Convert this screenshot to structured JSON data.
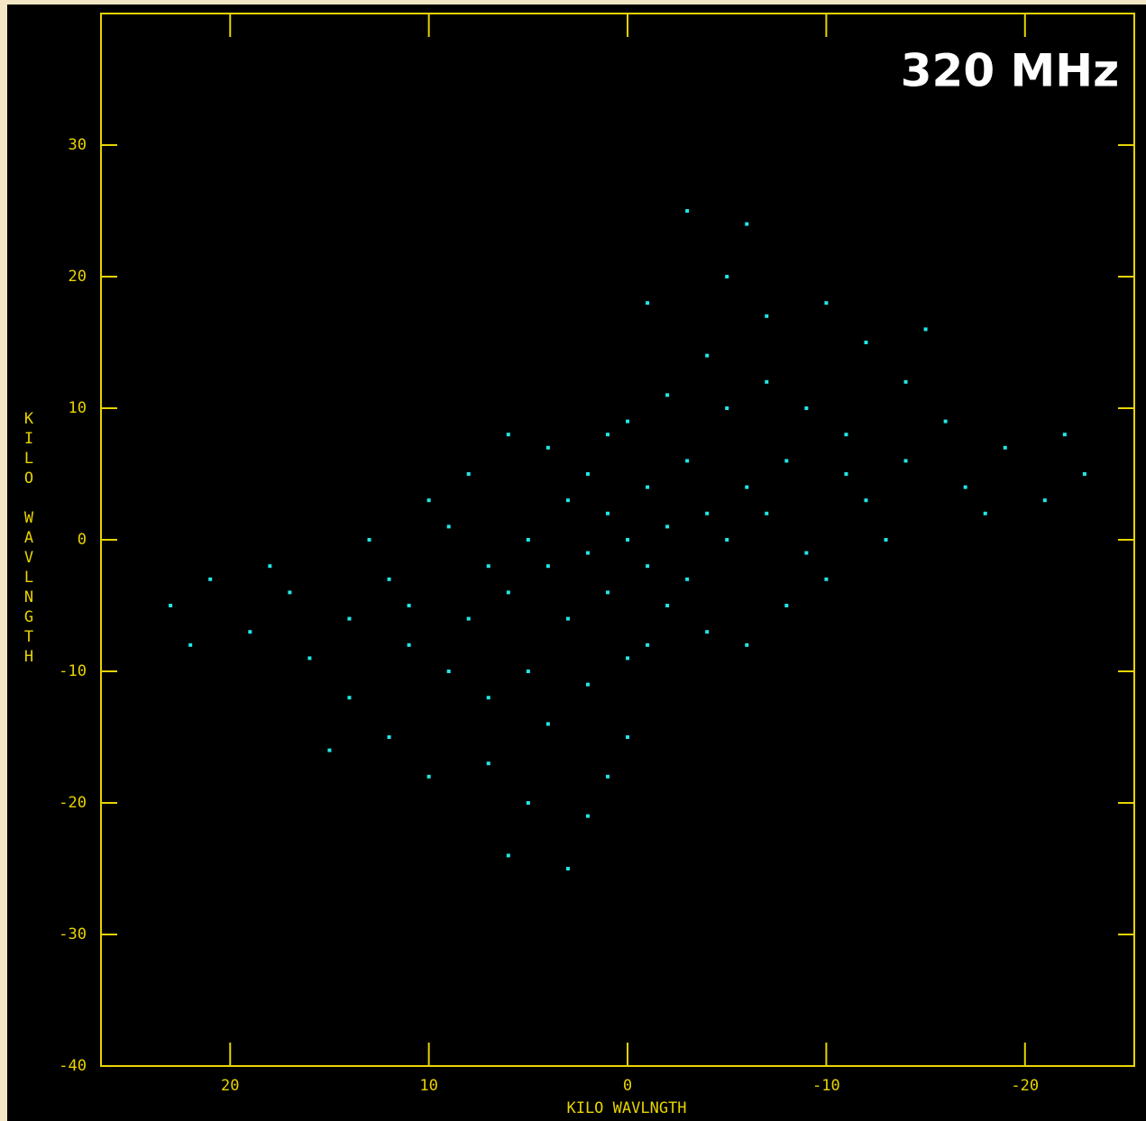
{
  "chart_data": {
    "type": "scatter",
    "annotation": "320 MHz",
    "xlabel": "KILO WAVLNGTH",
    "ylabel": "KILO WAVLNGTH",
    "xlim": [
      26.5,
      -25.5
    ],
    "ylim": [
      -40,
      40
    ],
    "xticks": [
      20,
      10,
      0,
      -10,
      -20
    ],
    "yticks": [
      -40,
      -30,
      -20,
      -10,
      0,
      10,
      20,
      30
    ],
    "series": [
      {
        "color": "#22e6e6",
        "x": [
          23,
          22,
          21,
          -23,
          -22,
          -21,
          19,
          18,
          -19,
          -18,
          14,
          12,
          10,
          5,
          2,
          -5,
          -10,
          -12,
          -14,
          -3,
          -6,
          3,
          6,
          11,
          9,
          7,
          4,
          0,
          -4,
          -7,
          -9,
          -11,
          10,
          8,
          -10,
          -8,
          5,
          2,
          -5,
          -2,
          12,
          13,
          -12,
          -13,
          15,
          -15,
          1,
          0,
          -1,
          2,
          -2,
          3,
          -3,
          1,
          -1,
          4,
          -4,
          2,
          -2,
          5,
          -5,
          3,
          -3,
          6,
          -6,
          4,
          -4,
          8,
          -8,
          6,
          -6,
          1,
          -1,
          9,
          -9,
          0,
          0,
          7,
          -7,
          11,
          -11,
          14,
          -14,
          16,
          -16,
          17,
          -17,
          -7,
          7,
          -1,
          1
        ],
        "values": [
          -5,
          -8,
          -3,
          5,
          8,
          3,
          -7,
          -2,
          7,
          2,
          -12,
          -15,
          -18,
          -20,
          -21,
          20,
          18,
          15,
          12,
          25,
          24,
          -25,
          -24,
          -8,
          -10,
          -12,
          -14,
          -15,
          14,
          12,
          10,
          8,
          3,
          5,
          -3,
          -5,
          -10,
          -11,
          10,
          11,
          -3,
          0,
          3,
          0,
          -16,
          16,
          2,
          0,
          -2,
          -1,
          1,
          3,
          -3,
          -4,
          4,
          -2,
          2,
          5,
          -5,
          0,
          0,
          -6,
          6,
          -4,
          4,
          7,
          -7,
          -6,
          6,
          8,
          -8,
          8,
          -8,
          1,
          -1,
          -9,
          9,
          -2,
          2,
          -5,
          5,
          -6,
          6,
          -9,
          9,
          -4,
          4,
          17,
          -17,
          18,
          -18
        ]
      }
    ]
  }
}
